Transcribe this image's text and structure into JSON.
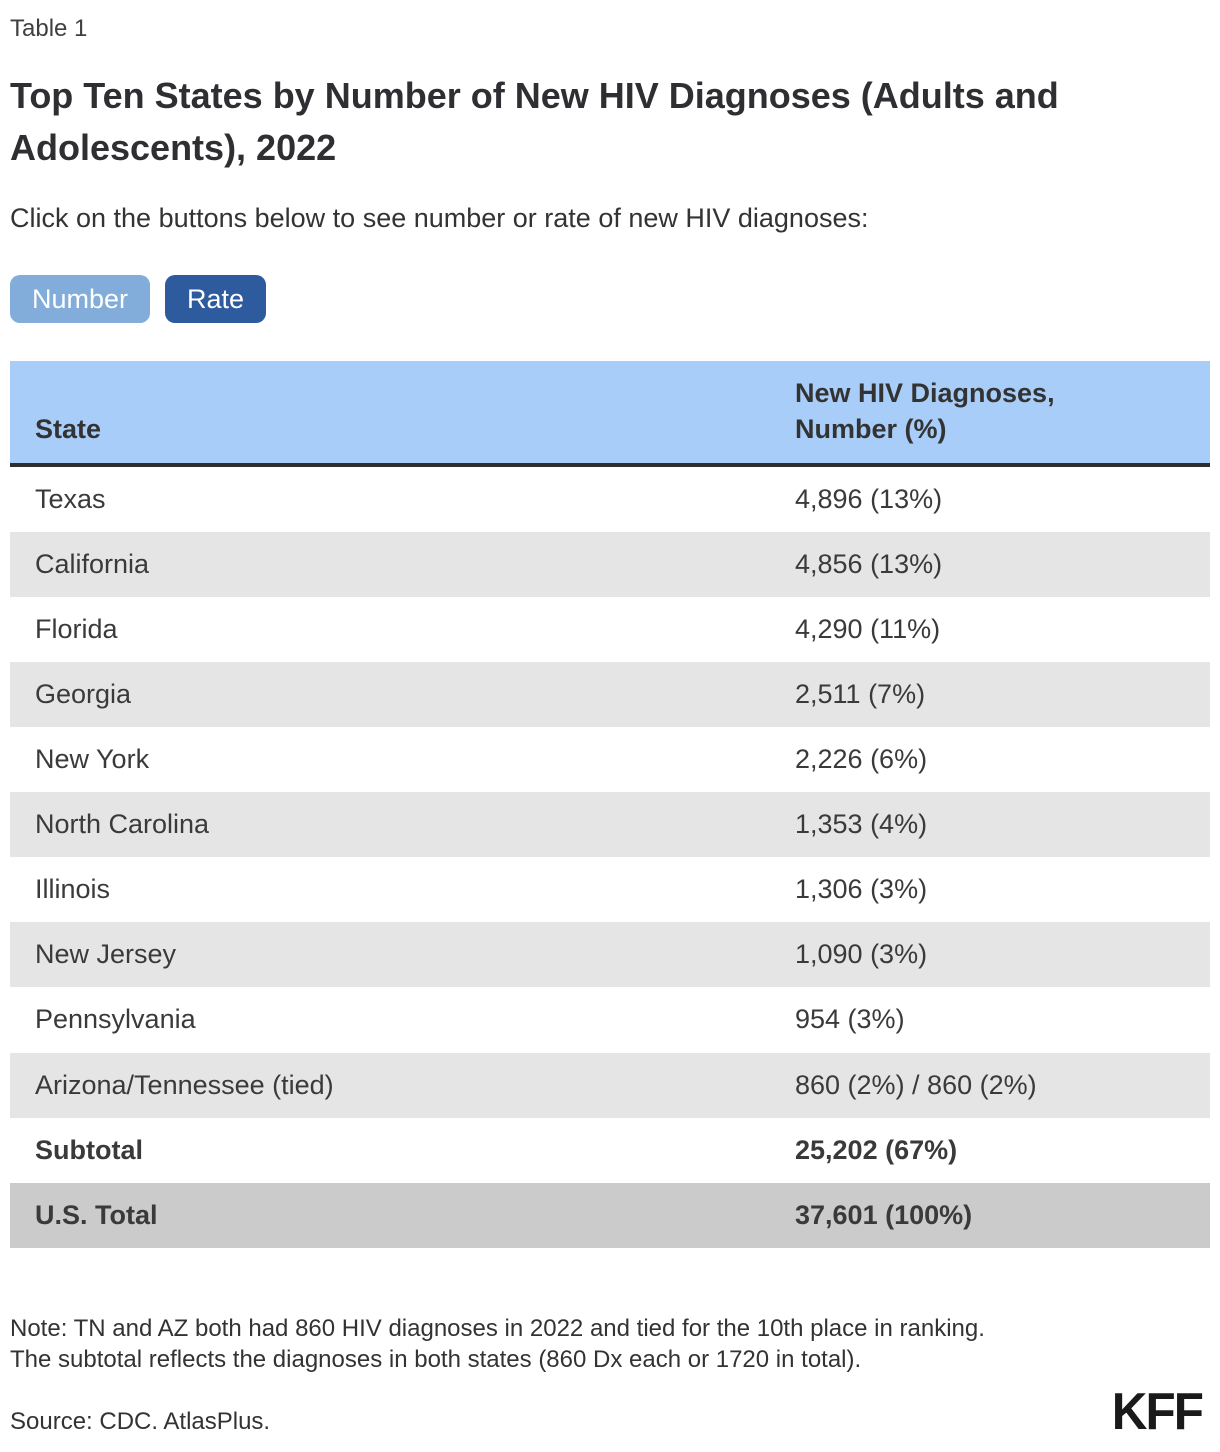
{
  "header": {
    "table_label": "Table 1",
    "title": "Top Ten States by Number of New HIV Diagnoses (Adults and Adolescents), 2022",
    "instructions": "Click on the buttons below to see number or rate of new HIV diagnoses:"
  },
  "buttons": {
    "number": "Number",
    "rate": "Rate"
  },
  "colors": {
    "number_button": "#82acd9",
    "rate_button": "#2d5b9e",
    "header_row": "#a8cdf8",
    "stripe_row": "#e5e5e5",
    "total_row": "#cbcbcb",
    "header_border": "#2e2e2e"
  },
  "table": {
    "header": {
      "col1": "State",
      "col2_line1": "New HIV Diagnoses,",
      "col2_line2": "Number (%)"
    },
    "rows": [
      {
        "state": "Texas",
        "value": "4,896 (13%)"
      },
      {
        "state": "California",
        "value": "4,856 (13%)"
      },
      {
        "state": "Florida",
        "value": "4,290 (11%)"
      },
      {
        "state": "Georgia",
        "value": "2,511 (7%)"
      },
      {
        "state": "New York",
        "value": "2,226 (6%)"
      },
      {
        "state": "North Carolina",
        "value": "1,353 (4%)"
      },
      {
        "state": "Illinois",
        "value": "1,306 (3%)"
      },
      {
        "state": "New Jersey",
        "value": "1,090 (3%)"
      },
      {
        "state": "Pennsylvania",
        "value": "954 (3%)"
      },
      {
        "state": "Arizona/Tennessee (tied)",
        "value": "860 (2%) / 860 (2%)"
      },
      {
        "state": "Subtotal",
        "value": "25,202 (67%)",
        "bold": true
      },
      {
        "state": "U.S. Total",
        "value": "37,601 (100%)",
        "bold": true,
        "highlight": true
      }
    ]
  },
  "chart_data": {
    "type": "table",
    "title": "Top Ten States by Number of New HIV Diagnoses (Adults and Adolescents), 2022",
    "columns": [
      "State",
      "New HIV Diagnoses, Number (%)"
    ],
    "rows": [
      {
        "state": "Texas",
        "number": 4896,
        "percent": "13%"
      },
      {
        "state": "California",
        "number": 4856,
        "percent": "13%"
      },
      {
        "state": "Florida",
        "number": 4290,
        "percent": "11%"
      },
      {
        "state": "Georgia",
        "number": 2511,
        "percent": "7%"
      },
      {
        "state": "New York",
        "number": 2226,
        "percent": "6%"
      },
      {
        "state": "North Carolina",
        "number": 1353,
        "percent": "4%"
      },
      {
        "state": "Illinois",
        "number": 1306,
        "percent": "3%"
      },
      {
        "state": "New Jersey",
        "number": 1090,
        "percent": "3%"
      },
      {
        "state": "Pennsylvania",
        "number": 954,
        "percent": "3%"
      },
      {
        "state": "Arizona (tied 10th)",
        "number": 860,
        "percent": "2%"
      },
      {
        "state": "Tennessee (tied 10th)",
        "number": 860,
        "percent": "2%"
      },
      {
        "state": "Subtotal",
        "number": 25202,
        "percent": "67%"
      },
      {
        "state": "U.S. Total",
        "number": 37601,
        "percent": "100%"
      }
    ],
    "source": "CDC. AtlasPlus."
  },
  "footer": {
    "note_line1": "Note: TN and AZ both had 860 HIV diagnoses in 2022 and tied for the 10th place in ranking.",
    "note_line2": "The subtotal reflects the diagnoses in both states (860 Dx each or 1720 in total).",
    "source": "Source: CDC. AtlasPlus.",
    "logo": "KFF"
  }
}
